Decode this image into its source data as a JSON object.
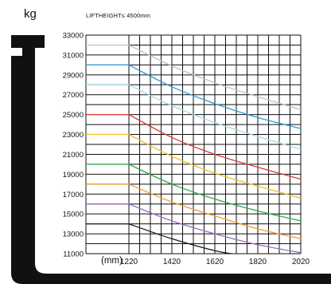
{
  "chart_data": {
    "type": "line",
    "title": "LIFTHEIGHT≤ 4500mm",
    "ylabel": "kg",
    "xlabel": "(mm)",
    "xlim": [
      1020,
      2020
    ],
    "ylim": [
      11000,
      33000
    ],
    "x_ticks": [
      "1220",
      "1420",
      "1620",
      "1820",
      "2020"
    ],
    "y_ticks": [
      "11000",
      "13000",
      "15000",
      "17000",
      "19000",
      "21000",
      "23000",
      "25000",
      "27000",
      "29000",
      "31000",
      "33000"
    ],
    "grid": true,
    "series": [
      {
        "color": "#c0c0c0",
        "points": [
          [
            1020,
            32000
          ],
          [
            1220,
            32000
          ],
          [
            1420,
            29900
          ],
          [
            1620,
            28200
          ],
          [
            1820,
            26800
          ],
          [
            2020,
            25500
          ]
        ]
      },
      {
        "color": "#2c9bd5",
        "points": [
          [
            1020,
            30000
          ],
          [
            1220,
            30000
          ],
          [
            1420,
            27800
          ],
          [
            1620,
            26100
          ],
          [
            1820,
            24700
          ],
          [
            2020,
            23600
          ]
        ]
      },
      {
        "color": "#a8d8ec",
        "points": [
          [
            1020,
            28000
          ],
          [
            1220,
            28000
          ],
          [
            1420,
            25900
          ],
          [
            1620,
            24200
          ],
          [
            1820,
            22800
          ],
          [
            2020,
            21500
          ]
        ]
      },
      {
        "color": "#d93a3a",
        "points": [
          [
            1020,
            25000
          ],
          [
            1220,
            25000
          ],
          [
            1420,
            22700
          ],
          [
            1620,
            21000
          ],
          [
            1820,
            19700
          ],
          [
            2020,
            18500
          ]
        ]
      },
      {
        "color": "#f0c020",
        "points": [
          [
            1020,
            23000
          ],
          [
            1220,
            23000
          ],
          [
            1420,
            20800
          ],
          [
            1620,
            19100
          ],
          [
            1820,
            17800
          ],
          [
            2020,
            16600
          ]
        ]
      },
      {
        "color": "#2eaa4a",
        "points": [
          [
            1020,
            20000
          ],
          [
            1220,
            20000
          ],
          [
            1420,
            18000
          ],
          [
            1620,
            16500
          ],
          [
            1820,
            15300
          ],
          [
            2020,
            14300
          ]
        ]
      },
      {
        "color": "#f39a2b",
        "points": [
          [
            1020,
            18000
          ],
          [
            1220,
            18000
          ],
          [
            1420,
            16200
          ],
          [
            1620,
            14800
          ],
          [
            1820,
            13500
          ],
          [
            2020,
            12500
          ]
        ]
      },
      {
        "color": "#9b6cc6",
        "points": [
          [
            1020,
            16000
          ],
          [
            1220,
            16000
          ],
          [
            1420,
            14300
          ],
          [
            1620,
            13000
          ],
          [
            1820,
            11900
          ],
          [
            2020,
            11100
          ]
        ]
      },
      {
        "color": "#1a1a1a",
        "points": [
          [
            1020,
            14000
          ],
          [
            1220,
            14000
          ],
          [
            1420,
            12500
          ],
          [
            1620,
            11300
          ],
          [
            1700,
            11000
          ]
        ]
      }
    ]
  }
}
